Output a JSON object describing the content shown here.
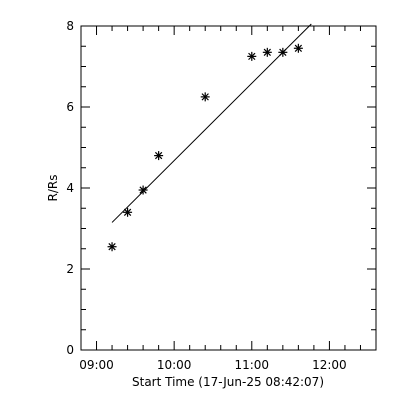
{
  "chart_data": {
    "type": "scatter",
    "xlabel": "Start Time (17-Jun-25 08:42:07)",
    "ylabel": "R/Rs",
    "xlim": [
      "08:48",
      "12:36"
    ],
    "ylim": [
      0,
      8
    ],
    "x_ticks": [
      "09:00",
      "10:00",
      "11:00",
      "12:00"
    ],
    "y_ticks": [
      0,
      2,
      4,
      6,
      8
    ],
    "grid": false,
    "series": [
      {
        "marker": "asterisk",
        "x": [
          "09:12",
          "09:24",
          "09:36",
          "09:48",
          "10:24",
          "11:00",
          "11:12",
          "11:24",
          "11:36"
        ],
        "y": [
          2.55,
          3.4,
          3.95,
          4.8,
          6.25,
          7.25,
          7.35,
          7.35,
          7.45
        ]
      }
    ],
    "fit_line": {
      "x": [
        "09:12",
        "11:46"
      ],
      "y": [
        3.15,
        8.05
      ]
    }
  }
}
